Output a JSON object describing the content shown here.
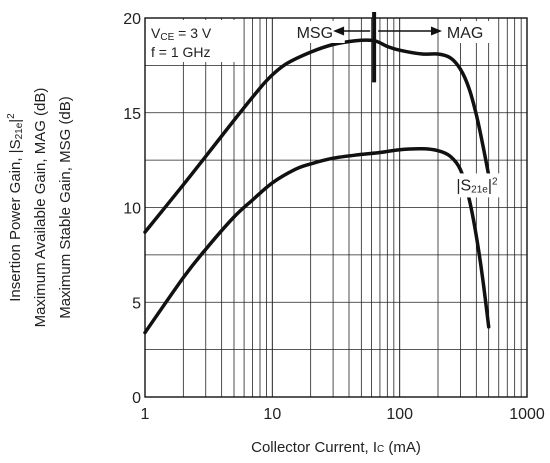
{
  "chart_data": {
    "type": "line",
    "title": "",
    "xlabel": "Collector Current, IC (mA)",
    "ylabel_lines": [
      "Insertion Power Gain, |S21e|2",
      "Maximum Available Gain, MAG (dB)",
      "Maximum Stable Gain, MSG (dB)"
    ],
    "x_scale": "log",
    "xlim": [
      1,
      1000
    ],
    "ylim": [
      0,
      20
    ],
    "x_ticks": [
      "1",
      "10",
      "100",
      "1000"
    ],
    "y_ticks": [
      "0",
      "5",
      "10",
      "15",
      "20"
    ],
    "grid": true,
    "conditions": [
      "VCE = 3 V",
      "f = 1 GHz"
    ],
    "boundary_x": 63,
    "annotations": [
      "MSG",
      "MAG"
    ],
    "series": [
      {
        "name": "MSG / MAG",
        "x": [
          1,
          2,
          3,
          5,
          8,
          10,
          13,
          20,
          30,
          45,
          63,
          80,
          100,
          150,
          200,
          250,
          300,
          350,
          400,
          450,
          500
        ],
        "y": [
          8.7,
          11.2,
          12.7,
          14.6,
          16.3,
          17.0,
          17.6,
          18.2,
          18.6,
          18.8,
          18.8,
          18.5,
          18.3,
          18.1,
          18.1,
          17.9,
          17.3,
          16.3,
          14.9,
          13.3,
          11.7
        ]
      },
      {
        "name": "|S21e|2",
        "x": [
          1,
          2,
          3,
          5,
          7,
          10,
          15,
          20,
          30,
          50,
          70,
          100,
          150,
          200,
          250,
          300,
          350,
          400,
          450,
          500
        ],
        "y": [
          3.4,
          6.3,
          7.8,
          9.5,
          10.4,
          11.3,
          12.0,
          12.3,
          12.6,
          12.8,
          12.9,
          13.05,
          13.1,
          13.0,
          12.7,
          12.0,
          10.5,
          8.5,
          6.2,
          3.7
        ]
      }
    ],
    "colors": {
      "line": "#111111",
      "grid": "#222222",
      "axis": "#111111"
    }
  }
}
